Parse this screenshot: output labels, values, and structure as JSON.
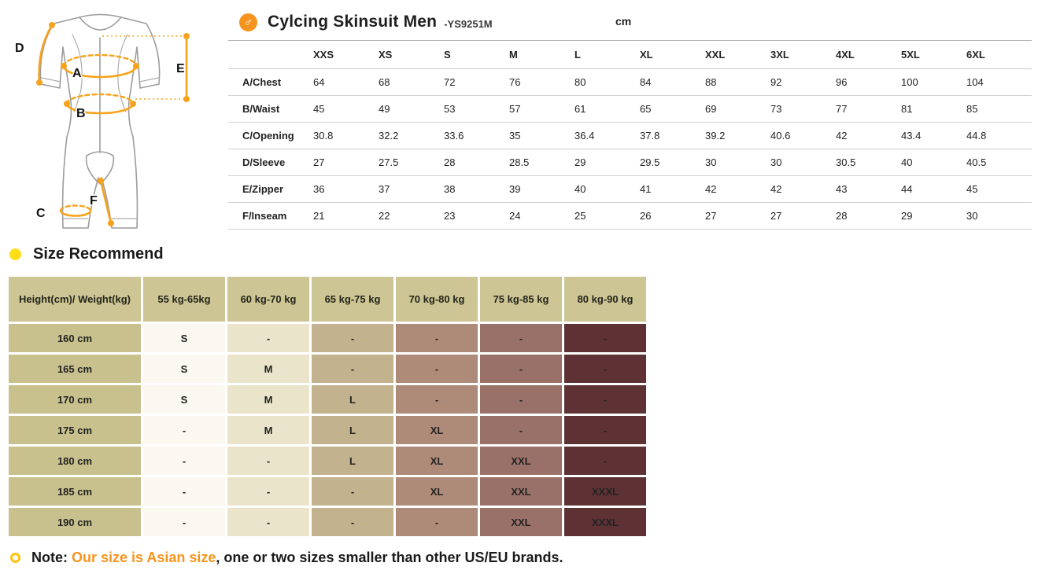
{
  "product": {
    "male_symbol": "♂",
    "title": "Cylcing Skinsuit Men",
    "model": "-YS9251M",
    "unit": "cm",
    "accent_orange": "#F7941D"
  },
  "size_table": {
    "columns": [
      "XXS",
      "XS",
      "S",
      "M",
      "L",
      "XL",
      "XXL",
      "3XL",
      "4XL",
      "5XL",
      "6XL"
    ],
    "rows": [
      {
        "label": "A/Chest",
        "values": [
          "64",
          "68",
          "72",
          "76",
          "80",
          "84",
          "88",
          "92",
          "96",
          "100",
          "104"
        ]
      },
      {
        "label": "B/Waist",
        "values": [
          "45",
          "49",
          "53",
          "57",
          "61",
          "65",
          "69",
          "73",
          "77",
          "81",
          "85"
        ]
      },
      {
        "label": "C/Opening",
        "values": [
          "30.8",
          "32.2",
          "33.6",
          "35",
          "36.4",
          "37.8",
          "39.2",
          "40.6",
          "42",
          "43.4",
          "44.8"
        ]
      },
      {
        "label": "D/Sleeve",
        "values": [
          "27",
          "27.5",
          "28",
          "28.5",
          "29",
          "29.5",
          "30",
          "30",
          "30.5",
          "40",
          "40.5"
        ]
      },
      {
        "label": "E/Zipper",
        "values": [
          "36",
          "37",
          "38",
          "39",
          "40",
          "41",
          "42",
          "42",
          "43",
          "44",
          "45"
        ]
      },
      {
        "label": "F/Inseam",
        "values": [
          "21",
          "22",
          "23",
          "24",
          "25",
          "26",
          "27",
          "27",
          "28",
          "29",
          "30"
        ]
      }
    ]
  },
  "recommend": {
    "heading": "Size Recommend",
    "header": [
      "Height(cm)/ Weight(kg)",
      "55 kg-65kg",
      "60 kg-70 kg",
      "65 kg-75 kg",
      "70 kg-80 kg",
      "75 kg-85 kg",
      "80 kg-90 kg"
    ],
    "header_bg": "#cdc593",
    "column_colors": [
      "#c9c18d",
      "#faf8f0",
      "#e9e4ca",
      "#c3b28e",
      "#ae8b78",
      "#9a7169",
      "#5e3135"
    ],
    "dot_color": "#FFDE17",
    "rows": [
      {
        "label": "160 cm",
        "cells": [
          "S",
          "-",
          "-",
          "-",
          "-",
          "-"
        ]
      },
      {
        "label": "165 cm",
        "cells": [
          "S",
          "M",
          "-",
          "-",
          "-",
          "-"
        ]
      },
      {
        "label": "170 cm",
        "cells": [
          "S",
          "M",
          "L",
          "-",
          "-",
          "-"
        ]
      },
      {
        "label": "175 cm",
        "cells": [
          "-",
          "M",
          "L",
          "XL",
          "-",
          "-"
        ]
      },
      {
        "label": "180 cm",
        "cells": [
          "-",
          "-",
          "L",
          "XL",
          "XXL",
          "-"
        ]
      },
      {
        "label": "185 cm",
        "cells": [
          "-",
          "-",
          "-",
          "XL",
          "XXL",
          "XXXL"
        ]
      },
      {
        "label": "190 cm",
        "cells": [
          "-",
          "-",
          "-",
          "-",
          "XXL",
          "XXXL"
        ]
      }
    ]
  },
  "diagram": {
    "labels": {
      "a": "A",
      "b": "B",
      "c": "C",
      "d": "D",
      "e": "E",
      "f": "F"
    }
  },
  "note": {
    "prefix": "Note: ",
    "highlight": "Our size is Asian size",
    "suffix": ", one or two sizes smaller than other US/EU brands."
  }
}
